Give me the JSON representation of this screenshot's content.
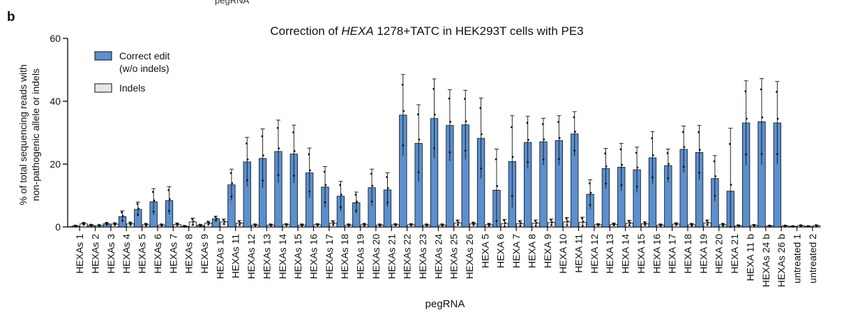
{
  "figure": {
    "panel_label": "b",
    "cut_label_top": "pegRNA"
  },
  "colors": {
    "correct": "#5b8fce",
    "indels": "#e6e6e6",
    "axis": "#111111"
  },
  "chart_data": {
    "type": "bar",
    "title_pre": "Correction of ",
    "title_italic": "HEXA",
    "title_post": " 1278+TATC in HEK293T cells with PE3",
    "xlabel": "pegRNA",
    "ylabel": [
      "% of total sequencing reads with",
      "non-pathogenic allele or indels"
    ],
    "ylim": [
      0,
      60
    ],
    "yticks": [
      0,
      20,
      40,
      60
    ],
    "grid": false,
    "legend": {
      "placement": "top-left",
      "entries": [
        "Correct edit",
        "(w/o indels)",
        "Indels"
      ]
    },
    "categories": [
      "HEXAs 1",
      "HEXAs 2",
      "HEXAs 3",
      "HEXAs 4",
      "HEXAs 5",
      "HEXAs 6",
      "HEXAs 7",
      "HEXAs 8",
      "HEXAs 9",
      "HEXAs 10",
      "HEXAs 11",
      "HEXAs 12",
      "HEXAs 13",
      "HEXAs 14",
      "HEXAs 15",
      "HEXAs 16",
      "HEXAs 17",
      "HEXAs 18",
      "HEXAs 19",
      "HEXAs 20",
      "HEXAs 21",
      "HEXAs 22",
      "HEXAs 23",
      "HEXAs 24",
      "HEXAs 25",
      "HEXAs 26",
      "HEXA 5",
      "HEXA 6",
      "HEXA 7",
      "HEXA 8",
      "HEXA 9",
      "HEXA 10",
      "HEXA 11",
      "HEXA 12",
      "HEXA 13",
      "HEXA 14",
      "HEXA 15",
      "HEXA 16",
      "HEXA 17",
      "HEXA 18",
      "HEXA 19",
      "HEXA 20",
      "HEXA 21",
      "HEXA 11 b",
      "HEXAs 24 b",
      "HEXAs 26 b",
      "untreated 1",
      "untreated 2"
    ],
    "series": [
      {
        "name": "Correct edit (w/o indels)",
        "values": [
          0.3,
          0.5,
          1.0,
          3.3,
          5.6,
          8.0,
          8.4,
          0.2,
          0.5,
          2.6,
          13.4,
          20.7,
          21.8,
          24.0,
          23.2,
          17.2,
          12.7,
          9.8,
          7.7,
          12.5,
          11.8,
          35.6,
          26.6,
          34.5,
          32.3,
          32.5,
          28.2,
          11.7,
          20.8,
          26.9,
          27.1,
          27.5,
          29.6,
          10.4,
          18.6,
          19.0,
          18.2,
          22.0,
          19.5,
          24.7,
          23.7,
          15.4,
          11.4,
          33.1,
          33.5,
          33.1,
          0.2,
          0.2
        ],
        "error": [
          0.2,
          0.3,
          0.4,
          1.8,
          2.3,
          4.2,
          4.4,
          0.2,
          0.3,
          0.8,
          5.0,
          7.8,
          9.4,
          10.0,
          9.2,
          7.9,
          6.5,
          4.7,
          3.4,
          5.9,
          5.4,
          12.9,
          12.3,
          12.6,
          11.4,
          11.0,
          12.8,
          13.1,
          14.6,
          8.3,
          7.5,
          7.9,
          7.1,
          4.6,
          6.4,
          7.6,
          7.2,
          8.3,
          5.3,
          7.4,
          8.6,
          7.3,
          20.0,
          13.4,
          13.7,
          13.2,
          0.1,
          0.1
        ]
      },
      {
        "name": "Indels",
        "values": [
          1.0,
          0.4,
          0.9,
          1.0,
          0.7,
          0.6,
          0.8,
          1.6,
          1.2,
          1.6,
          1.2,
          0.6,
          0.6,
          0.7,
          0.6,
          0.7,
          1.2,
          0.6,
          0.7,
          0.6,
          0.7,
          0.7,
          0.6,
          0.6,
          1.3,
          1.0,
          0.7,
          1.1,
          1.1,
          1.2,
          1.4,
          1.6,
          1.5,
          0.7,
          0.8,
          1.2,
          1.0,
          0.6,
          0.9,
          0.7,
          1.3,
          0.7,
          0.4,
          0.5,
          0.3,
          0.3,
          0.4,
          0.4
        ],
        "error": [
          0.4,
          0.3,
          0.4,
          0.5,
          0.4,
          0.3,
          0.4,
          1.2,
          0.6,
          0.9,
          0.8,
          0.3,
          0.3,
          0.3,
          0.3,
          0.3,
          0.8,
          0.3,
          0.4,
          0.3,
          0.3,
          0.3,
          0.3,
          0.3,
          0.9,
          0.5,
          0.4,
          1.3,
          0.9,
          1.0,
          1.1,
          1.4,
          1.6,
          0.3,
          0.4,
          0.9,
          0.6,
          0.3,
          0.4,
          0.4,
          0.9,
          0.4,
          0.2,
          0.2,
          0.2,
          0.2,
          0.2,
          0.2
        ]
      }
    ]
  }
}
